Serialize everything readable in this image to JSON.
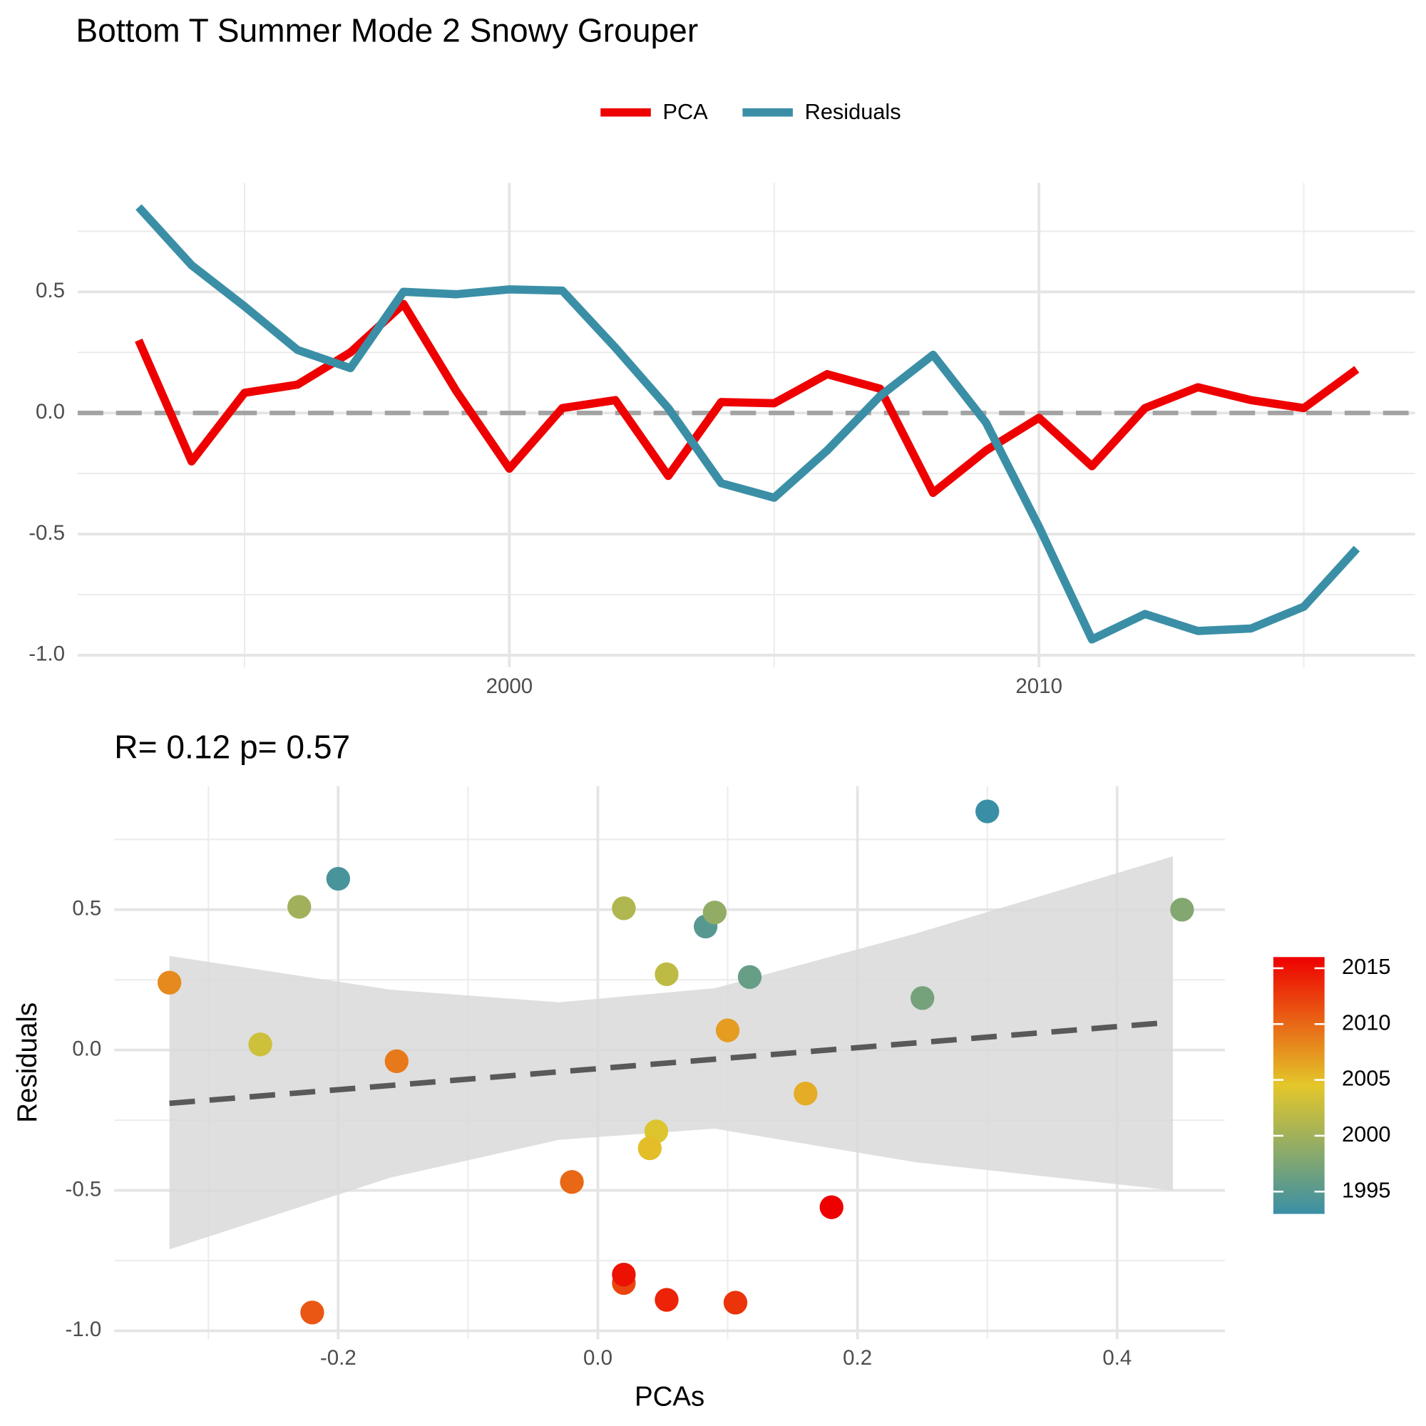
{
  "chart_data": [
    {
      "type": "line",
      "title": "Bottom T Summer Mode 2 Snowy Grouper",
      "x": [
        1993,
        1994,
        1995,
        1996,
        1997,
        1998,
        1999,
        2000,
        2001,
        2002,
        2003,
        2004,
        2005,
        2006,
        2007,
        2008,
        2009,
        2010,
        2011,
        2012,
        2013,
        2014,
        2015,
        2016
      ],
      "series": [
        {
          "name": "PCA",
          "color": "#ee0000",
          "values": [
            0.3,
            -0.2,
            0.083,
            0.117,
            0.25,
            0.45,
            0.09,
            -0.23,
            0.02,
            0.053,
            -0.26,
            0.045,
            0.04,
            0.16,
            0.1,
            -0.33,
            -0.155,
            -0.02,
            -0.22,
            0.02,
            0.106,
            0.053,
            0.02,
            0.18
          ]
        },
        {
          "name": "Residuals",
          "color": "#3a8fa6",
          "values": [
            0.85,
            0.61,
            0.44,
            0.26,
            0.185,
            0.5,
            0.49,
            0.51,
            0.505,
            0.27,
            0.02,
            -0.29,
            -0.35,
            -0.155,
            0.07,
            0.24,
            -0.04,
            -0.47,
            -0.935,
            -0.83,
            -0.9,
            -0.89,
            -0.8,
            -0.56
          ]
        }
      ],
      "hline": 0,
      "xlim": [
        1991.85,
        2017.1
      ],
      "xticks": [
        2000,
        2010
      ],
      "ylim": [
        -1.05,
        0.95
      ],
      "yticks": [
        {
          "value": -1,
          "label": "-1.0"
        },
        -0.5,
        {
          "value": 0,
          "label": "0.0"
        },
        0.5
      ],
      "grid": true,
      "legend": "top"
    },
    {
      "type": "scatter",
      "title": "R= 0.12  p= 0.57",
      "x_label": "PCAs",
      "y_label": "Residuals",
      "x": [
        0.3,
        -0.2,
        0.083,
        0.117,
        0.25,
        0.45,
        0.09,
        -0.23,
        0.02,
        0.053,
        -0.26,
        0.045,
        0.04,
        0.16,
        0.1,
        -0.33,
        -0.155,
        -0.02,
        -0.22,
        0.02,
        0.106,
        0.053,
        0.02,
        0.18
      ],
      "values": [
        0.85,
        0.61,
        0.44,
        0.26,
        0.185,
        0.5,
        0.49,
        0.51,
        0.505,
        0.27,
        0.02,
        -0.29,
        -0.35,
        -0.155,
        0.07,
        0.24,
        -0.04,
        -0.47,
        -0.935,
        -0.83,
        -0.9,
        -0.89,
        -0.8,
        -0.56
      ],
      "color_values": [
        1993,
        1994,
        1995,
        1996,
        1997,
        1998,
        1999,
        2000,
        2001,
        2002,
        2003,
        2004,
        2005,
        2006,
        2007,
        2008,
        2009,
        2010,
        2011,
        2012,
        2013,
        2014,
        2015,
        2016
      ],
      "colorscale": [
        "#3a8fa6",
        "#e3c72a",
        "#ee0000"
      ],
      "clim": [
        1993,
        2016
      ],
      "cticks": [
        1995,
        2000,
        2005,
        2010,
        2015
      ],
      "fit": {
        "x": [
          -0.33,
          0.431
        ],
        "y": [
          -0.19,
          0.095
        ],
        "color": "#595959"
      },
      "band": {
        "x": [
          -0.33,
          -0.16,
          -0.03,
          0.09,
          0.245,
          0.443
        ],
        "upper": [
          0.335,
          0.215,
          0.17,
          0.22,
          0.415,
          0.69
        ],
        "lower": [
          -0.71,
          -0.455,
          -0.32,
          -0.28,
          -0.4,
          -0.5
        ],
        "color": "#d9d9d9"
      },
      "xlim": [
        -0.3725,
        0.483
      ],
      "xticks": [
        -0.2,
        {
          "value": 0,
          "label": "0.0"
        },
        0.2,
        0.4
      ],
      "ylim": [
        -1.03,
        0.94
      ],
      "yticks": [
        {
          "value": -1,
          "label": "-1.0"
        },
        -0.5,
        {
          "value": 0,
          "label": "0.0"
        },
        0.5
      ],
      "grid": true,
      "legend": "right"
    }
  ]
}
